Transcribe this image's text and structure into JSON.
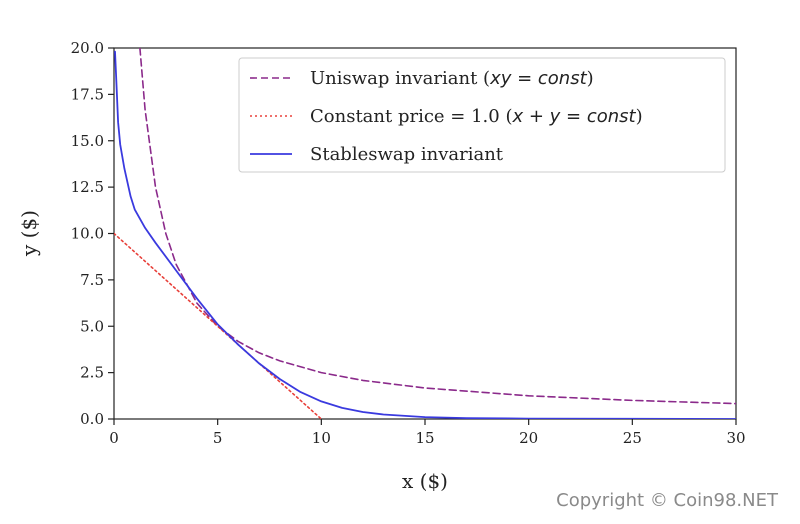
{
  "chart_data": {
    "type": "line",
    "title": "",
    "xlabel": "x ($)",
    "ylabel": "y ($)",
    "xlim": [
      0,
      30
    ],
    "ylim": [
      0,
      20
    ],
    "x_ticks": [
      0,
      5,
      10,
      15,
      20,
      25,
      30
    ],
    "y_ticks": [
      0,
      2.5,
      5,
      7.5,
      10,
      12.5,
      15,
      17.5,
      20
    ],
    "x_tick_labels": [
      "0",
      "5",
      "10",
      "15",
      "20",
      "25",
      "30"
    ],
    "y_tick_labels": [
      "0.0",
      "2.5",
      "5.0",
      "7.5",
      "10.0",
      "12.5",
      "15.0",
      "17.5",
      "20.0"
    ],
    "grid": false,
    "legend_position": "top-right",
    "series": [
      {
        "name": "Uniswap invariant (xy = const)",
        "legend_plain": "Uniswap invariant (",
        "legend_math": "xy = const",
        "legend_tail": ")",
        "style": "dashed",
        "color": "#8b2a8b",
        "x": [
          1.25,
          1.5,
          2,
          2.5,
          3,
          4,
          5,
          6,
          7,
          8,
          10,
          12,
          15,
          20,
          25,
          30
        ],
        "y": [
          20,
          16.67,
          12.5,
          10,
          8.33,
          6.25,
          5,
          4.17,
          3.57,
          3.13,
          2.5,
          2.08,
          1.67,
          1.25,
          1.0,
          0.83
        ]
      },
      {
        "name": "Constant price = 1.0 (x + y = const)",
        "legend_plain": "Constant price = 1.0 (",
        "legend_math": "x + y = const",
        "legend_tail": ")",
        "style": "dotted",
        "color": "#e8403a",
        "x": [
          0,
          10
        ],
        "y": [
          10,
          0
        ]
      },
      {
        "name": "Stableswap invariant",
        "legend_plain": "Stableswap invariant",
        "legend_math": "",
        "legend_tail": "",
        "style": "solid",
        "color": "#3a3adf",
        "x": [
          0.05,
          0.1,
          0.2,
          0.3,
          0.5,
          0.8,
          1,
          1.5,
          2,
          3,
          4,
          5,
          6,
          7,
          8,
          9,
          10,
          11,
          12,
          13,
          15,
          17,
          20,
          25,
          30
        ],
        "y": [
          19.8,
          18.5,
          16.0,
          14.8,
          13.5,
          12.0,
          11.3,
          10.3,
          9.5,
          8.0,
          6.5,
          5.1,
          4.0,
          3.0,
          2.15,
          1.45,
          0.95,
          0.6,
          0.38,
          0.24,
          0.1,
          0.05,
          0.02,
          0.01,
          0.0
        ]
      }
    ]
  },
  "watermark": "Copyright © Coin98.NET"
}
